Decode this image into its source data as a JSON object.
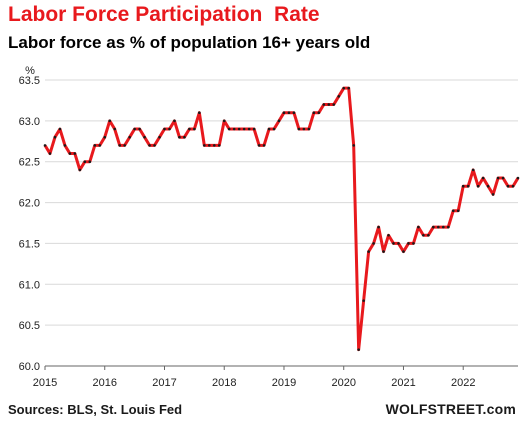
{
  "title": "Labor Force Participation  Rate",
  "subtitle": "Labor force as % of population 16+ years old",
  "source": "Sources: BLS, St. Louis Fed",
  "brand": "WOLFSTREET.com",
  "colors": {
    "title": "#e8191d",
    "line": "#e8191d",
    "marker": "#1a1a1a",
    "grid": "#d9d9d9"
  },
  "chart_data": {
    "type": "line",
    "ylabel": "%",
    "xlabel": "",
    "ylim": [
      60.0,
      63.5
    ],
    "xlim": [
      2015.0,
      2022.917
    ],
    "grid": "horizontal",
    "y_ticks": [
      "60.0",
      "60.5",
      "61.0",
      "61.5",
      "62.0",
      "62.5",
      "63.0",
      "63.5"
    ],
    "x_ticks": [
      "2015",
      "2016",
      "2017",
      "2018",
      "2019",
      "2020",
      "2021",
      "2022"
    ],
    "series": [
      {
        "x_start": "2015-01",
        "frequency": "monthly",
        "values": [
          62.7,
          62.6,
          62.8,
          62.9,
          62.7,
          62.6,
          62.6,
          62.4,
          62.5,
          62.5,
          62.7,
          62.7,
          62.8,
          63.0,
          62.9,
          62.7,
          62.7,
          62.8,
          62.9,
          62.9,
          62.8,
          62.7,
          62.7,
          62.8,
          62.9,
          62.9,
          63.0,
          62.8,
          62.8,
          62.9,
          62.9,
          63.1,
          62.7,
          62.7,
          62.7,
          62.7,
          63.0,
          62.9,
          62.9,
          62.9,
          62.9,
          62.9,
          62.9,
          62.7,
          62.7,
          62.9,
          62.9,
          63.0,
          63.1,
          63.1,
          63.1,
          62.9,
          62.9,
          62.9,
          63.1,
          63.1,
          63.2,
          63.2,
          63.2,
          63.3,
          63.4,
          63.4,
          62.7,
          60.2,
          60.8,
          61.4,
          61.5,
          61.7,
          61.4,
          61.6,
          61.5,
          61.5,
          61.4,
          61.5,
          61.5,
          61.7,
          61.6,
          61.6,
          61.7,
          61.7,
          61.7,
          61.7,
          61.9,
          61.9,
          62.2,
          62.2,
          62.4,
          62.2,
          62.3,
          62.2,
          62.1,
          62.3,
          62.3,
          62.2,
          62.2,
          62.3
        ]
      }
    ]
  }
}
